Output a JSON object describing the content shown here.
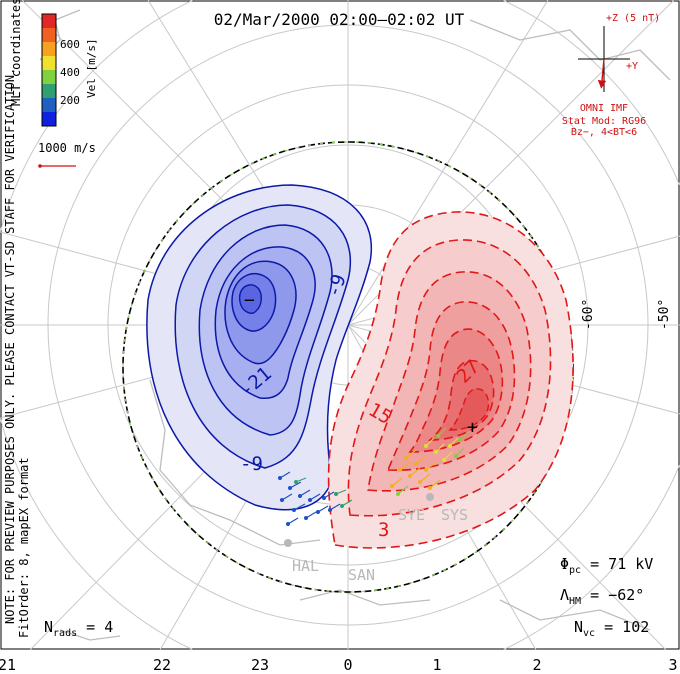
{
  "chart_data": {
    "type": "polar-contour",
    "title": "02/Mar/2000 02:00–02:02 UT",
    "colorbar": {
      "label": "Vel [m/s]",
      "ticks": [
        "600",
        "400",
        "200"
      ],
      "colors": [
        "#e02828",
        "#f06020",
        "#f8a020",
        "#f0e030",
        "#80d040",
        "#30a070",
        "#2060c0",
        "#1020e0"
      ]
    },
    "coordinate_label": "MLT coordinates",
    "reference_vector_label": "1000 m/s",
    "imf": {
      "z_label": "+Z (5 nT)",
      "y_label": "+Y",
      "source_label": "OMNI IMF",
      "stat_model": "Stat Mod: RG96",
      "stat_condition": "Bz−, 4<BT<6",
      "by_nT": -0.4,
      "bz_nT": -4.3
    },
    "note": "NOTE: FOR PREVIEW PURPOSES ONLY. PLEASE CONTACT VT-SD STAFF FOR VERIFICATION.",
    "fit_info": "FitOrder: 8,  mapEX format",
    "latitude_labels": [
      "-60°",
      "-50°"
    ],
    "mlt_ticks": [
      "21",
      "22",
      "23",
      "0",
      "1",
      "2",
      "3"
    ],
    "contours": {
      "negative_labels": [
        "-9",
        "-21",
        "-9"
      ],
      "positive_labels": [
        "27",
        "15",
        "3"
      ],
      "min_marker": "−",
      "max_marker": "+"
    },
    "radar_labels": [
      "SYE",
      "SYS",
      "HAL",
      "SAN"
    ],
    "stats": {
      "phi_pc": {
        "symbol": "Φ",
        "sub": "pc",
        "text": " = 71 kV",
        "value_kV": 71
      },
      "lambda_hm": {
        "symbol": "Λ",
        "sub": "HM",
        "text": " = −62°",
        "value_deg": -62
      },
      "n_vc": {
        "symbol": "N",
        "sub": "vc",
        "text": " = 102",
        "value": 102
      },
      "n_rads": {
        "symbol": "N",
        "sub": "rads",
        "text": " = 4",
        "value": 4
      }
    }
  }
}
